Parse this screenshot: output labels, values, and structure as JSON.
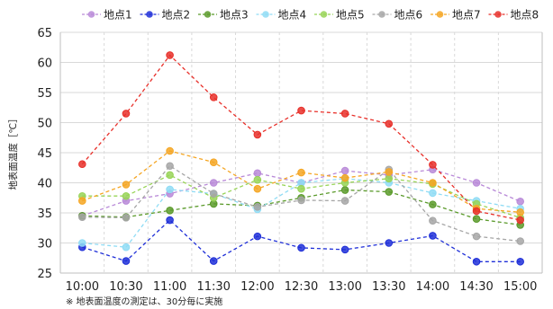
{
  "chart_data": {
    "type": "line",
    "title": "",
    "xlabel": "",
    "ylabel": "地表面温度［℃］",
    "note": "※ 地表面温度の測定は、30分毎に実施",
    "categories": [
      "10:00",
      "10:30",
      "11:00",
      "11:30",
      "12:00",
      "12:30",
      "13:00",
      "13:30",
      "14:00",
      "14:30",
      "15:00"
    ],
    "ylim": [
      25,
      65
    ],
    "yticks": [
      25,
      30,
      35,
      40,
      45,
      50,
      55,
      60,
      65
    ],
    "grid": true,
    "legend_position": "top",
    "series": [
      {
        "name": "地点1",
        "color": "#b98ad8",
        "values": [
          34.5,
          37.0,
          38.2,
          40.0,
          41.6,
          40.0,
          42.0,
          41.3,
          42.2,
          40.0,
          36.9
        ]
      },
      {
        "name": "地点2",
        "color": "#1f2fd8",
        "values": [
          29.3,
          27.0,
          33.8,
          27.0,
          31.1,
          29.2,
          28.9,
          30.0,
          31.2,
          26.9,
          26.9
        ]
      },
      {
        "name": "地点3",
        "color": "#5a9a2a",
        "values": [
          34.5,
          34.3,
          35.4,
          36.5,
          36.2,
          37.5,
          38.8,
          38.5,
          36.4,
          34.0,
          33.0
        ]
      },
      {
        "name": "地点4",
        "color": "#8fdcf5",
        "values": [
          30.0,
          29.3,
          38.9,
          38.2,
          35.6,
          40.0,
          40.7,
          40.0,
          38.3,
          37.0,
          35.7
        ]
      },
      {
        "name": "地点5",
        "color": "#98d457",
        "values": [
          37.8,
          37.8,
          41.3,
          37.5,
          40.5,
          39.0,
          40.0,
          40.7,
          39.8,
          36.5,
          34.2
        ]
      },
      {
        "name": "地点6",
        "color": "#a6a6a6",
        "values": [
          34.3,
          34.2,
          42.8,
          38.2,
          36.0,
          37.1,
          37.0,
          42.2,
          33.7,
          31.1,
          30.3
        ]
      },
      {
        "name": "地点7",
        "color": "#f5a623",
        "values": [
          37.0,
          39.7,
          45.3,
          43.4,
          39.0,
          41.7,
          40.8,
          41.8,
          40.0,
          35.7,
          35.1
        ]
      },
      {
        "name": "地点8",
        "color": "#e8302a",
        "values": [
          43.1,
          51.5,
          61.2,
          54.2,
          48.0,
          52.0,
          51.5,
          49.8,
          43.0,
          35.3,
          33.8
        ]
      }
    ]
  },
  "colors": {
    "grid": "#d9d9d9",
    "axis": "#bfbfbf",
    "text": "#222222"
  }
}
